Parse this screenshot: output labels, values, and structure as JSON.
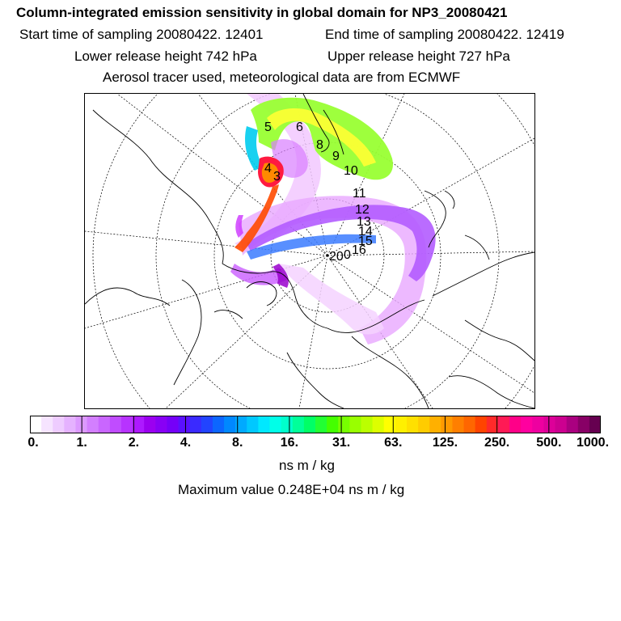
{
  "header": {
    "title": "Column-integrated emission sensitivity in global domain for NP3_20080421",
    "start_time": "Start time of sampling 20080422. 12401",
    "end_time": "End time of sampling 20080422. 12419",
    "lower_height": "Lower release height  742 hPa",
    "upper_height": "Upper release height  727 hPa",
    "tracer_info": "Aerosol tracer used, meteorological data are from ECMWF"
  },
  "map": {
    "trajectory_labels": [
      "5",
      "6",
      "4",
      "3",
      "8",
      "9",
      "10",
      "11",
      "12",
      "13",
      "14",
      "15",
      "16",
      "20",
      "0"
    ]
  },
  "colorbar": {
    "colors": [
      "#ffffff",
      "#f6e4ff",
      "#eeccff",
      "#e5b2ff",
      "#dc99ff",
      "#d37fff",
      "#c966ff",
      "#c04cff",
      "#b733ff",
      "#ad19ff",
      "#9b00f0",
      "#8800f5",
      "#7500f8",
      "#5a10ff",
      "#3a2aff",
      "#2244ff",
      "#0c66ff",
      "#0088ff",
      "#00aaff",
      "#00c8ff",
      "#00e8ff",
      "#00ffe8",
      "#00ffcc",
      "#00ff99",
      "#00ff66",
      "#22ff33",
      "#44ff00",
      "#77ff00",
      "#99ff00",
      "#bbff00",
      "#ddff00",
      "#ffff00",
      "#fff000",
      "#ffe000",
      "#ffcc00",
      "#ffb000",
      "#ff9900",
      "#ff7f00",
      "#ff6600",
      "#ff4400",
      "#ff2a2a",
      "#ff1a55",
      "#ff0088",
      "#ff009f",
      "#ee00a0",
      "#dd0099",
      "#cc0090",
      "#aa0080",
      "#880066",
      "#660050"
    ],
    "tick_labels": [
      "0.",
      "1.",
      "2.",
      "4.",
      "8.",
      "16.",
      "31.",
      "63.",
      "125.",
      "250.",
      "500.",
      "1000."
    ],
    "unit": "ns m / kg"
  },
  "footer": {
    "max_value": "Maximum value  0.248E+04 ns m / kg"
  }
}
